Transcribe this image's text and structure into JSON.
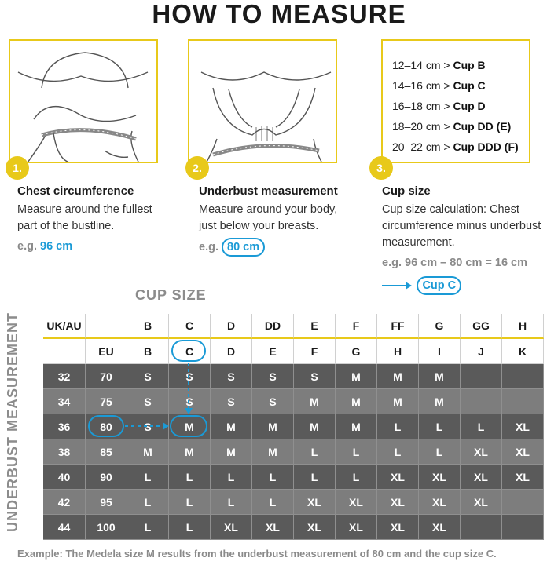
{
  "title": "HOW TO MEASURE",
  "steps": [
    {
      "num": "1.",
      "title": "Chest circumference",
      "desc_1": "Measure around the fullest",
      "desc_2": "part of the bustline.",
      "eg_prefix": "e.g.",
      "eg_value": "96 cm"
    },
    {
      "num": "2.",
      "title": "Underbust measurement",
      "desc_1": "Measure around your body,",
      "desc_2": "just below your breasts.",
      "eg_prefix": "e.g.",
      "eg_value": "80 cm"
    },
    {
      "num": "3.",
      "title": "Cup size",
      "desc_1": "Cup size calculation: Chest",
      "desc_2": "circumference minus underbust",
      "desc_3": "measurement.",
      "eg_text": "e.g. 96 cm – 80 cm = 16 cm",
      "result": "Cup C"
    }
  ],
  "cup_ranges": [
    {
      "range": "12–14 cm >",
      "cup": "Cup B"
    },
    {
      "range": "14–16 cm >",
      "cup": "Cup C"
    },
    {
      "range": "16–18 cm >",
      "cup": "Cup D"
    },
    {
      "range": "18–20 cm >",
      "cup": "Cup DD (E)"
    },
    {
      "range": "20–22 cm >",
      "cup": "Cup DDD (F)"
    }
  ],
  "table": {
    "cup_size_heading": "CUP SIZE",
    "underbust_heading": "UNDERBUST MEASUREMENT",
    "uk_header": [
      "UK/AU",
      "",
      "B",
      "C",
      "D",
      "DD",
      "E",
      "F",
      "FF",
      "G",
      "GG",
      "H"
    ],
    "eu_header": [
      "",
      "EU",
      "B",
      "C",
      "D",
      "E",
      "F",
      "G",
      "H",
      "I",
      "J",
      "K"
    ],
    "rows": [
      {
        "uk": "32",
        "eu": "70",
        "sizes": [
          "S",
          "S",
          "S",
          "S",
          "S",
          "M",
          "M",
          "M",
          "",
          ""
        ]
      },
      {
        "uk": "34",
        "eu": "75",
        "sizes": [
          "S",
          "S",
          "S",
          "S",
          "M",
          "M",
          "M",
          "M",
          "",
          ""
        ]
      },
      {
        "uk": "36",
        "eu": "80",
        "sizes": [
          "S",
          "M",
          "M",
          "M",
          "M",
          "M",
          "L",
          "L",
          "L",
          "XL"
        ]
      },
      {
        "uk": "38",
        "eu": "85",
        "sizes": [
          "M",
          "M",
          "M",
          "M",
          "L",
          "L",
          "L",
          "L",
          "XL",
          "XL"
        ]
      },
      {
        "uk": "40",
        "eu": "90",
        "sizes": [
          "L",
          "L",
          "L",
          "L",
          "L",
          "L",
          "XL",
          "XL",
          "XL",
          "XL"
        ]
      },
      {
        "uk": "42",
        "eu": "95",
        "sizes": [
          "L",
          "L",
          "L",
          "L",
          "XL",
          "XL",
          "XL",
          "XL",
          "XL",
          ""
        ]
      },
      {
        "uk": "44",
        "eu": "100",
        "sizes": [
          "L",
          "L",
          "XL",
          "XL",
          "XL",
          "XL",
          "XL",
          "XL",
          "",
          ""
        ]
      }
    ]
  },
  "example": "Example: The Medela size M results from the underbust measurement of 80 cm and the cup size C.",
  "colors": {
    "accent": "#e8c91a",
    "highlight": "#1a9ad6",
    "dark_row": "#5a5a5a",
    "light_row": "#7d7d7d"
  }
}
